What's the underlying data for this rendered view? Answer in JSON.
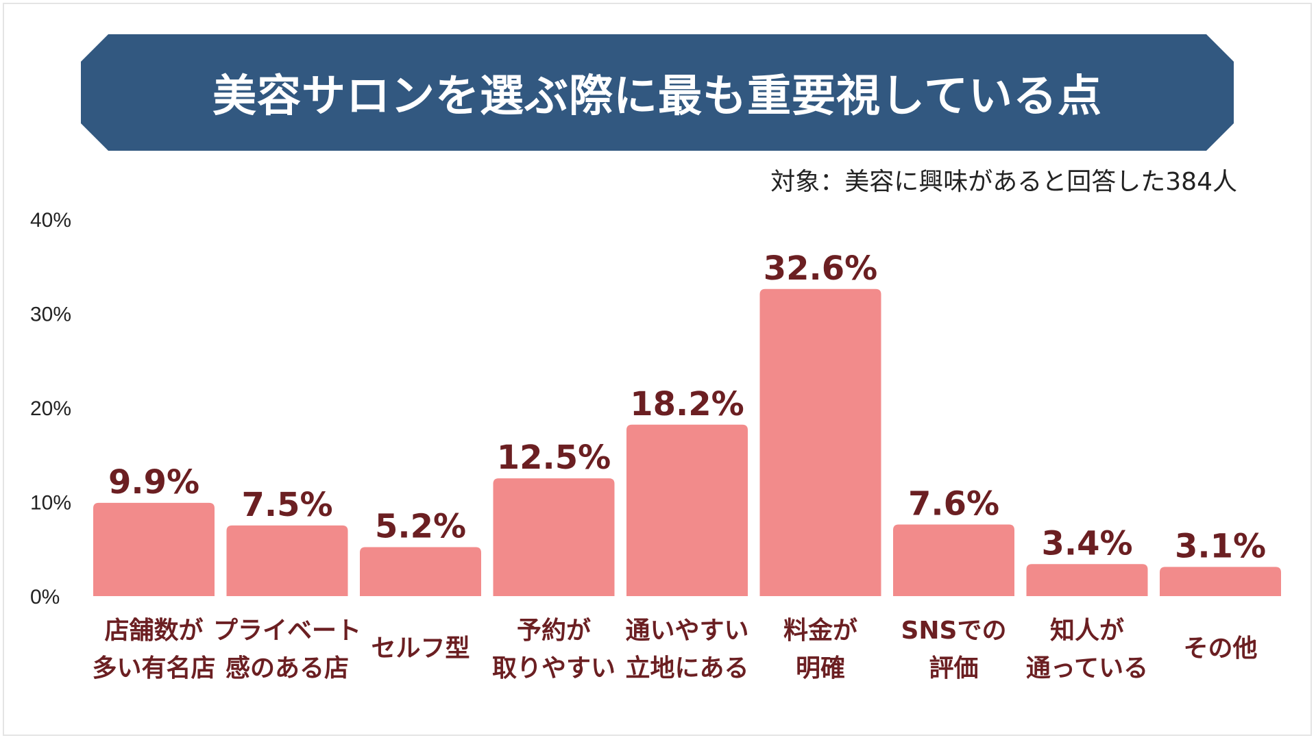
{
  "title": "美容サロンを選ぶ際に最も重要視している点",
  "subtitle": "対象：美容に興味があると回答した384人",
  "colors": {
    "banner": "#325880",
    "bar": "#f28b8b",
    "label": "#6b1f22",
    "axis_text": "#222222"
  },
  "chart_data": {
    "type": "bar",
    "categories": [
      [
        "店舗数が",
        "多い有名店"
      ],
      [
        "プライベート",
        "感のある店"
      ],
      [
        "セルフ型"
      ],
      [
        "予約が",
        "取りやすい"
      ],
      [
        "通いやすい",
        "立地にある"
      ],
      [
        "料金が",
        "明確"
      ],
      [
        "SNSでの",
        "評価"
      ],
      [
        "知人が",
        "通っている"
      ],
      [
        "その他"
      ]
    ],
    "values": [
      9.9,
      7.5,
      5.2,
      12.5,
      18.2,
      32.6,
      7.6,
      3.4,
      3.1
    ],
    "value_labels": [
      "9.9%",
      "7.5%",
      "5.2%",
      "12.5%",
      "18.2%",
      "32.6%",
      "7.6%",
      "3.4%",
      "3.1%"
    ],
    "ylim": [
      0,
      40
    ],
    "yticks": [
      0,
      10,
      20,
      30,
      40
    ],
    "ytick_labels": [
      "0%",
      "10%",
      "20%",
      "30%",
      "40%"
    ],
    "grid": false,
    "legend": "none"
  }
}
